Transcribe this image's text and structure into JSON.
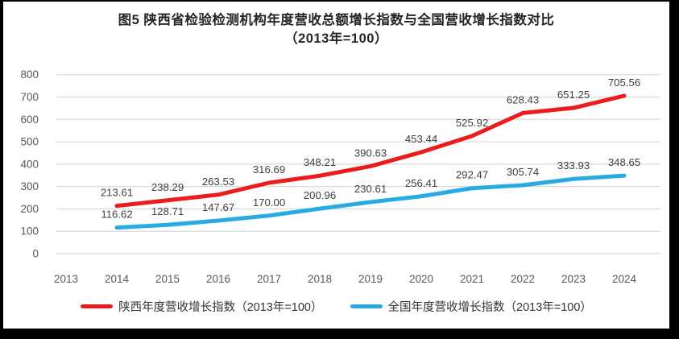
{
  "chart_data": {
    "type": "line",
    "title_line1": "图5  陕西省检验检测机构年度营收总额增长指数与全国营收增长指数对比",
    "title_line2": "（2013年=100）",
    "categories": [
      "2013",
      "2014",
      "2015",
      "2016",
      "2017",
      "2018",
      "2019",
      "2020",
      "2021",
      "2022",
      "2023",
      "2024"
    ],
    "series": [
      {
        "name": "陕西年度营收增长指数（2013年=100）",
        "color": "#ec1c1c",
        "start_category": "2014",
        "values": [
          213.61,
          238.29,
          263.53,
          316.69,
          348.21,
          390.63,
          453.44,
          525.92,
          628.43,
          651.25,
          705.56
        ]
      },
      {
        "name": "全国年度营收增长指数（2013年=100）",
        "color": "#29abe2",
        "start_category": "2014",
        "values": [
          116.62,
          128.71,
          147.67,
          170.0,
          200.96,
          230.61,
          256.41,
          292.47,
          305.74,
          333.93,
          348.65
        ]
      }
    ],
    "ylim": [
      0,
      800
    ],
    "yticks": [
      0,
      100,
      200,
      300,
      400,
      500,
      600,
      700,
      800
    ],
    "grid": true,
    "legend_position": "bottom",
    "value_label_decimals": 2,
    "colors": {
      "grid": "#d9d9d9",
      "axis_text": "#595959",
      "value_label": "#404040",
      "plot_background": "#ffffff",
      "frame": "#000000"
    }
  }
}
